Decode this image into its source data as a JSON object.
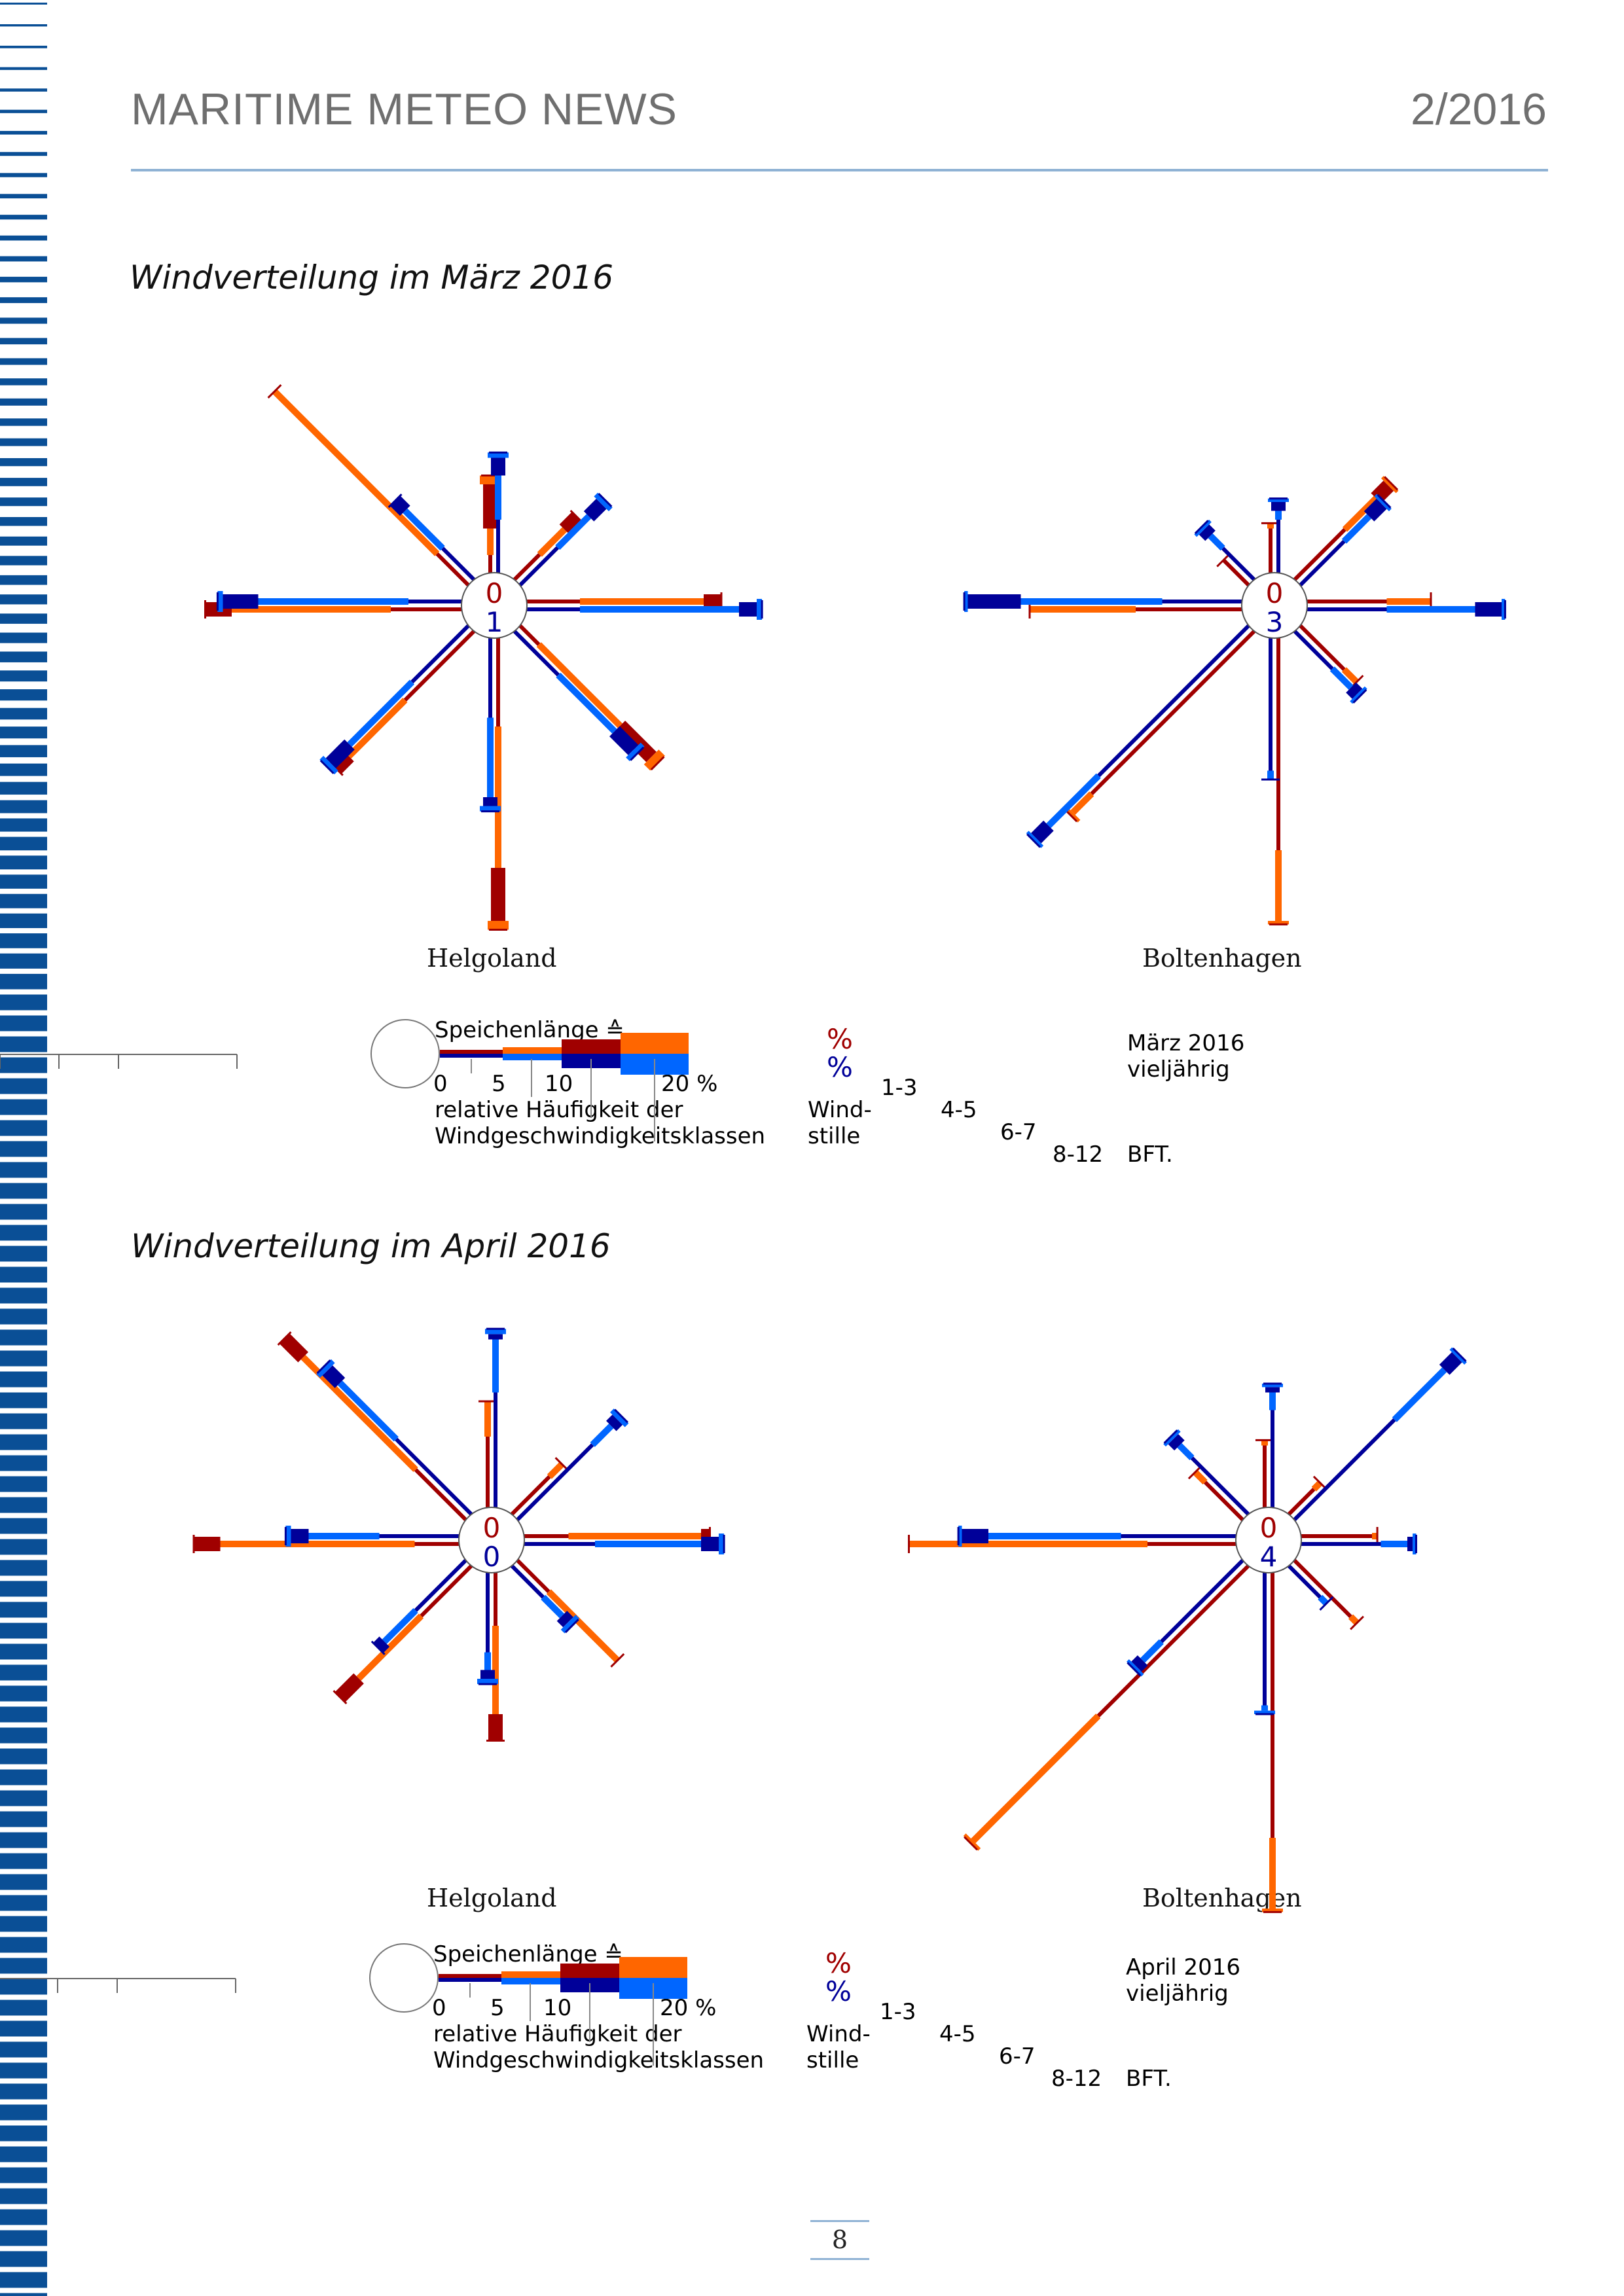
{
  "header": {
    "title": "MARITIME METEO NEWS",
    "issue": "2/2016"
  },
  "page_number": "8",
  "colors": {
    "current_calm_dark": "#a00000",
    "current_strong": "#ff6600",
    "longterm_dark": "#000099",
    "longterm_light": "#0066ff",
    "stripe": "#0a4f96"
  },
  "legend_march": {
    "speichen": "Speichenlänge ≙",
    "ticks": [
      "0",
      "5",
      "10",
      "20 %"
    ],
    "rel1": "relative Häufigkeit der",
    "rel2": "Windgeschwindigkeitsklassen",
    "pct_top": "%",
    "pct_bottom": "%",
    "wind1": "Wind-",
    "wind2": "stille",
    "b1": "1-3",
    "b2": "4-5",
    "b3": "6-7",
    "b4": "8-12",
    "current": "März 2016",
    "longterm": "vieljährig",
    "bft": "BFT."
  },
  "legend_april": {
    "speichen": "Speichenlänge ≙",
    "ticks": [
      "0",
      "5",
      "10",
      "20 %"
    ],
    "rel1": "relative Häufigkeit der",
    "rel2": "Windgeschwindigkeitsklassen",
    "pct_top": "%",
    "pct_bottom": "%",
    "wind1": "Wind-",
    "wind2": "stille",
    "b1": "1-3",
    "b2": "4-5",
    "b3": "6-7",
    "b4": "8-12",
    "current": "April 2016",
    "longterm": "vieljährig",
    "bft": "BFT."
  },
  "chart_data": [
    {
      "type": "windrose",
      "section_title": "Windverteilung im März 2016",
      "station": "Helgoland",
      "calm_current": "0",
      "calm_longterm": "1",
      "directions": [
        "N",
        "NE",
        "E",
        "SE",
        "S",
        "SW",
        "W",
        "NW"
      ],
      "series": [
        {
          "name": "März 2016",
          "values": [
            [
              1.0,
              1.5,
              2.5,
              0.5
            ],
            [
              2.0,
              2.0,
              1.0,
              0.0
            ],
            [
              3.0,
              7.0,
              1.0,
              0.0
            ],
            [
              1.5,
              6.5,
              2.5,
              0.5
            ],
            [
              5.0,
              8.0,
              3.0,
              0.5
            ],
            [
              5.5,
              4.5,
              1.0,
              0.0
            ],
            [
              4.0,
              9.0,
              1.5,
              0.0
            ],
            [
              2.5,
              13.0,
              0.0,
              0.0
            ]
          ]
        },
        {
          "name": "vieljährig",
          "values": [
            [
              3.0,
              2.5,
              1.0,
              0.3
            ],
            [
              3.0,
              2.5,
              1.0,
              0.3
            ],
            [
              3.0,
              9.0,
              1.0,
              0.3
            ],
            [
              3.5,
              4.5,
              1.5,
              0.3
            ],
            [
              4.5,
              4.5,
              0.5,
              0.3
            ],
            [
              4.5,
              5.0,
              1.5,
              0.3
            ],
            [
              3.0,
              8.5,
              2.0,
              0.3
            ],
            [
              2.5,
              3.0,
              0.8,
              0.0
            ]
          ]
        }
      ]
    },
    {
      "type": "windrose",
      "section_title": "Windverteilung im März 2016",
      "station": "Boltenhagen",
      "calm_current": "0",
      "calm_longterm": "3",
      "directions": [
        "N",
        "NE",
        "E",
        "SE",
        "S",
        "SW",
        "W",
        "NW"
      ],
      "series": [
        {
          "name": "März 2016",
          "values": [
            [
              2.5,
              0.3,
              0.0,
              0.0
            ],
            [
              4.0,
              2.5,
              1.0,
              0.2
            ],
            [
              4.5,
              2.5,
              0.0,
              0.0
            ],
            [
              3.5,
              1.0,
              0.0,
              0.0
            ],
            [
              12.0,
              4.0,
              0.0,
              0.2
            ],
            [
              13.0,
              1.5,
              0.0,
              0.2
            ],
            [
              6.0,
              6.0,
              0.0,
              0.0
            ],
            [
              2.0,
              0.0,
              0.0,
              0.0
            ]
          ]
        },
        {
          "name": "vieljährig",
          "values": [
            [
              3.0,
              0.5,
              0.5,
              0.2
            ],
            [
              3.5,
              2.0,
              1.0,
              0.2
            ],
            [
              4.5,
              5.0,
              1.5,
              0.2
            ],
            [
              3.0,
              1.5,
              0.5,
              0.2
            ],
            [
              7.5,
              0.5,
              0.0,
              0.0
            ],
            [
              12.0,
              4.0,
              1.0,
              0.2
            ],
            [
              4.5,
              8.0,
              3.0,
              0.2
            ],
            [
              2.5,
              1.0,
              0.5,
              0.2
            ]
          ]
        }
      ]
    },
    {
      "type": "windrose",
      "section_title": "Windverteilung im April 2016",
      "station": "Helgoland",
      "calm_current": "0",
      "calm_longterm": "0",
      "directions": [
        "N",
        "NE",
        "E",
        "SE",
        "S",
        "SW",
        "W",
        "NW"
      ],
      "series": [
        {
          "name": "April 2016",
          "values": [
            [
              4.0,
              2.0,
              0.0,
              0.0
            ],
            [
              3.0,
              1.0,
              0.0,
              0.0
            ],
            [
              2.5,
              7.5,
              0.5,
              0.0
            ],
            [
              2.5,
              5.5,
              0.0,
              0.0
            ],
            [
              3.0,
              5.0,
              1.5,
              0.0
            ],
            [
              4.0,
              5.0,
              1.5,
              0.0
            ],
            [
              2.5,
              11.0,
              1.5,
              0.0
            ],
            [
              4.0,
              9.0,
              1.5,
              0.0
            ]
          ]
        },
        {
          "name": "vieljährig",
          "values": [
            [
              6.5,
              3.0,
              0.3,
              0.3
            ],
            [
              6.0,
              1.5,
              0.5,
              0.3
            ],
            [
              4.0,
              6.0,
              1.0,
              0.3
            ],
            [
              2.5,
              1.5,
              0.5,
              0.3
            ],
            [
              4.5,
              1.0,
              0.5,
              0.3
            ],
            [
              4.0,
              2.5,
              0.5,
              0.0
            ],
            [
              4.5,
              4.0,
              1.0,
              0.3
            ],
            [
              6.0,
              4.5,
              1.0,
              0.3
            ]
          ]
        }
      ]
    },
    {
      "type": "windrose",
      "section_title": "Windverteilung im April 2016",
      "station": "Boltenhagen",
      "calm_current": "0",
      "calm_longterm": "4",
      "directions": [
        "N",
        "NE",
        "E",
        "SE",
        "S",
        "SW",
        "W",
        "NW"
      ],
      "series": [
        {
          "name": "April 2016",
          "values": [
            [
              3.5,
              0.3,
              0.0,
              0.0
            ],
            [
              2.0,
              0.5,
              0.0,
              0.0
            ],
            [
              4.0,
              0.3,
              0.0,
              0.0
            ],
            [
              4.5,
              0.5,
              0.0,
              0.0
            ],
            [
              15.0,
              4.0,
              0.0,
              0.2
            ],
            [
              12.0,
              10.0,
              0.0,
              0.2
            ],
            [
              5.0,
              13.5,
              0.0,
              0.0
            ],
            [
              3.0,
              0.8,
              0.0,
              0.0
            ]
          ]
        },
        {
          "name": "vieljährig",
          "values": [
            [
              5.5,
              1.0,
              0.3,
              0.2
            ],
            [
              8.0,
              4.0,
              1.0,
              0.2
            ],
            [
              4.5,
              1.5,
              0.3,
              0.2
            ],
            [
              2.5,
              0.5,
              0.0,
              0.0
            ],
            [
              7.5,
              0.3,
              0.0,
              0.2
            ],
            [
              6.5,
              1.5,
              0.5,
              0.2
            ],
            [
              6.5,
              7.5,
              1.5,
              0.2
            ],
            [
              4.5,
              1.0,
              0.5,
              0.2
            ]
          ]
        }
      ]
    }
  ]
}
